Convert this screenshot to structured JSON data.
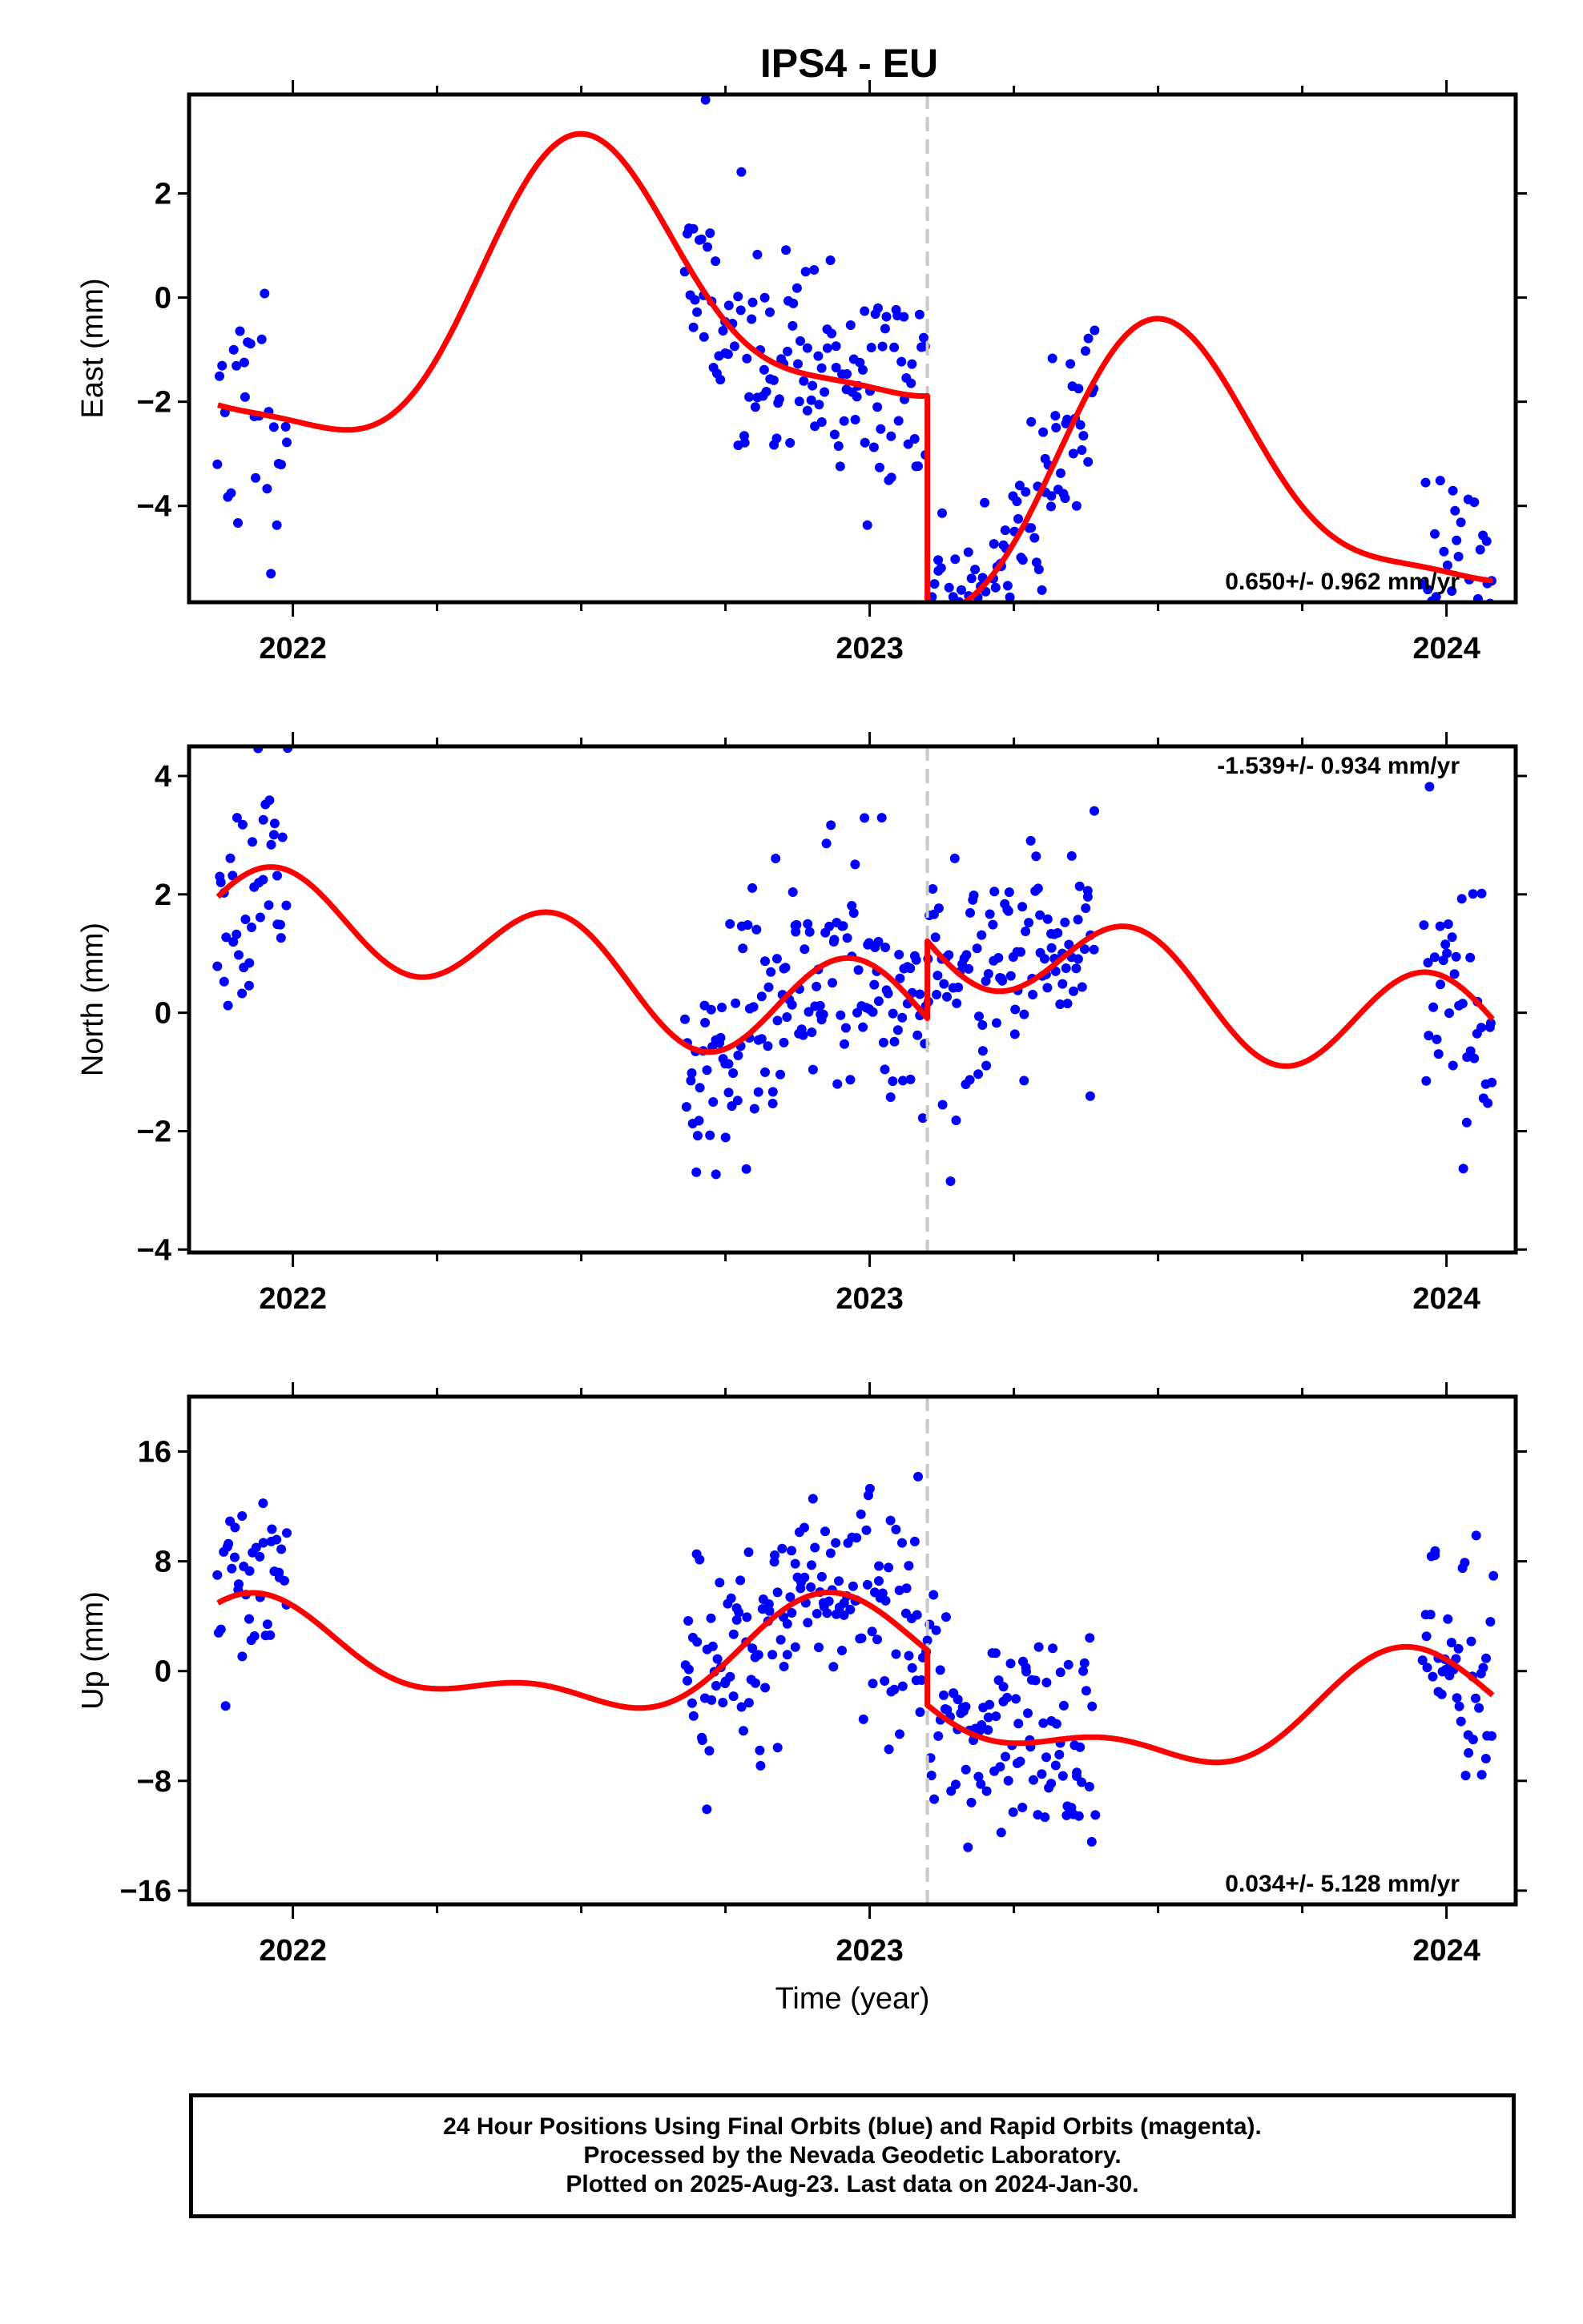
{
  "title": "IPS4 - EU",
  "xlabel": "Time (year)",
  "colors": {
    "data": "#0000ff",
    "model": "#ff0000",
    "event_line": "#c8c8c8",
    "frame": "#000000"
  },
  "footer": {
    "line1": "24 Hour Positions Using Final Orbits (blue) and Rapid Orbits (magenta).",
    "line2": "Processed by the Nevada Geodetic Laboratory.",
    "line3": "Plotted on 2025-Aug-23. Last data on 2024-Jan-30."
  },
  "chart_data": [
    {
      "type": "scatter",
      "component": "east",
      "ylabel": "East (mm)",
      "rate_text": "0.650+/- 0.962 mm/yr",
      "rate_position": "bottom-right",
      "xlim": [
        2021.82,
        2024.12
      ],
      "ylim": [
        -5.85,
        3.9
      ],
      "x_ticks": [
        2022,
        2023,
        2024
      ],
      "y_ticks": [
        2,
        0,
        -2,
        -4
      ],
      "y_tick_labels": [
        "2",
        "0",
        "−2",
        "−4"
      ],
      "event_line_x": 2023.1,
      "model": {
        "offset": 0.0,
        "rate": 0.65,
        "step_at": 2023.1,
        "step": -4.2,
        "a1": 2.6,
        "phi1": 4.64,
        "a2": 0.7,
        "phi2": 1.8,
        "t0": 2022.7,
        "visible_ranges": [
          [
            2021.87,
            2024.08
          ]
        ]
      },
      "points": {
        "segments": [
          {
            "from": 2021.87,
            "to": 2021.99,
            "n": 28,
            "spread": 1.2
          },
          {
            "from": 2022.68,
            "to": 2023.39,
            "n": 230,
            "spread": 1.05
          },
          {
            "from": 2023.96,
            "to": 2024.08,
            "n": 34,
            "spread": 1.0
          }
        ],
        "seed": 11
      }
    },
    {
      "type": "scatter",
      "component": "north",
      "ylabel": "North (mm)",
      "rate_text": "-1.539+/- 0.934 mm/yr",
      "rate_position": "top-right",
      "xlim": [
        2021.82,
        2024.12
      ],
      "ylim": [
        -4.05,
        4.5
      ],
      "x_ticks": [
        2022,
        2023,
        2024
      ],
      "y_ticks": [
        4,
        2,
        0,
        -2,
        -4
      ],
      "y_tick_labels": [
        "4",
        "2",
        "0",
        "−2",
        "−4"
      ],
      "event_line_x": 2023.1,
      "model": {
        "offset": 0.0,
        "rate": -1.539,
        "step_at": 2023.1,
        "step": 1.3,
        "a1": 0.25,
        "phi1": 0.3,
        "a2": 0.85,
        "phi2": 2.05,
        "t0": 2023.0,
        "visible_ranges": [
          [
            2021.87,
            2024.08
          ]
        ]
      },
      "points": {
        "segments": [
          {
            "from": 2021.87,
            "to": 1021.99,
            "n": 0,
            "spread": 0
          },
          {
            "from": 2021.87,
            "to": 2021.99,
            "n": 40,
            "spread": 0.9
          },
          {
            "from": 2022.68,
            "to": 2023.39,
            "n": 260,
            "spread": 1.0
          },
          {
            "from": 2023.96,
            "to": 2024.08,
            "n": 40,
            "spread": 1.1
          }
        ],
        "seed": 23
      }
    },
    {
      "type": "scatter",
      "component": "up",
      "ylabel": "Up (mm)",
      "rate_text": "0.034+/- 5.128 mm/yr",
      "rate_position": "bottom-right",
      "xlim": [
        2021.82,
        2024.12
      ],
      "ylim": [
        -17.0,
        20.0
      ],
      "x_ticks": [
        2022,
        2023,
        2024
      ],
      "y_ticks": [
        16,
        8,
        0,
        -8,
        -16
      ],
      "y_tick_labels": [
        "16",
        "8",
        "0",
        "−8",
        "−16"
      ],
      "event_line_x": 2023.1,
      "model": {
        "offset": 0.6,
        "rate": 0.034,
        "step_at": 2023.1,
        "step": -4.0,
        "a1": 3.4,
        "phi1": 1.85,
        "a2": 1.8,
        "phi2": 2.6,
        "t0": 2023.0,
        "visible_ranges": [
          [
            2021.87,
            2024.08
          ]
        ]
      },
      "points": {
        "segments": [
          {
            "from": 2021.87,
            "to": 2021.99,
            "n": 40,
            "spread": 3.8
          },
          {
            "from": 2022.68,
            "to": 2023.39,
            "n": 260,
            "spread": 4.0
          },
          {
            "from": 2023.96,
            "to": 2024.08,
            "n": 45,
            "spread": 3.5
          }
        ],
        "seed": 37
      }
    }
  ]
}
